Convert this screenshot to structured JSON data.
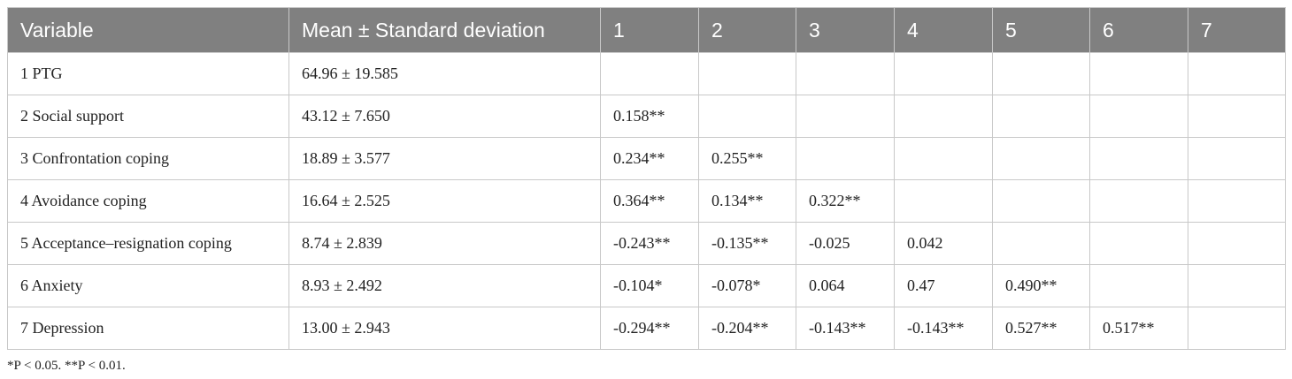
{
  "table": {
    "header": [
      "Variable",
      "Mean ± Standard deviation",
      "1",
      "2",
      "3",
      "4",
      "5",
      "6",
      "7"
    ],
    "rows": [
      {
        "variable": "1 PTG",
        "mean_sd": "64.96 ± 19.585",
        "correlations": []
      },
      {
        "variable": "2 Social support",
        "mean_sd": "43.12 ± 7.650",
        "correlations": [
          "0.158**"
        ]
      },
      {
        "variable": "3 Confrontation coping",
        "mean_sd": "18.89 ± 3.577",
        "correlations": [
          "0.234**",
          "0.255**"
        ]
      },
      {
        "variable": "4 Avoidance coping",
        "mean_sd": "16.64 ± 2.525",
        "correlations": [
          "0.364**",
          "0.134**",
          "0.322**"
        ]
      },
      {
        "variable": "5 Acceptance–resignation coping",
        "mean_sd": "8.74 ± 2.839",
        "correlations": [
          "-0.243**",
          "-0.135**",
          "-0.025",
          "0.042"
        ]
      },
      {
        "variable": "6 Anxiety",
        "mean_sd": "8.93 ± 2.492",
        "correlations": [
          "-0.104*",
          "-0.078*",
          "0.064",
          "0.47",
          "0.490**"
        ]
      },
      {
        "variable": "7 Depression",
        "mean_sd": "13.00 ± 2.943",
        "correlations": [
          "-0.294**",
          "-0.204**",
          "-0.143**",
          "-0.143**",
          "0.527**",
          "0.517**"
        ]
      }
    ],
    "footnote": "*P < 0.05. **P < 0.01."
  }
}
